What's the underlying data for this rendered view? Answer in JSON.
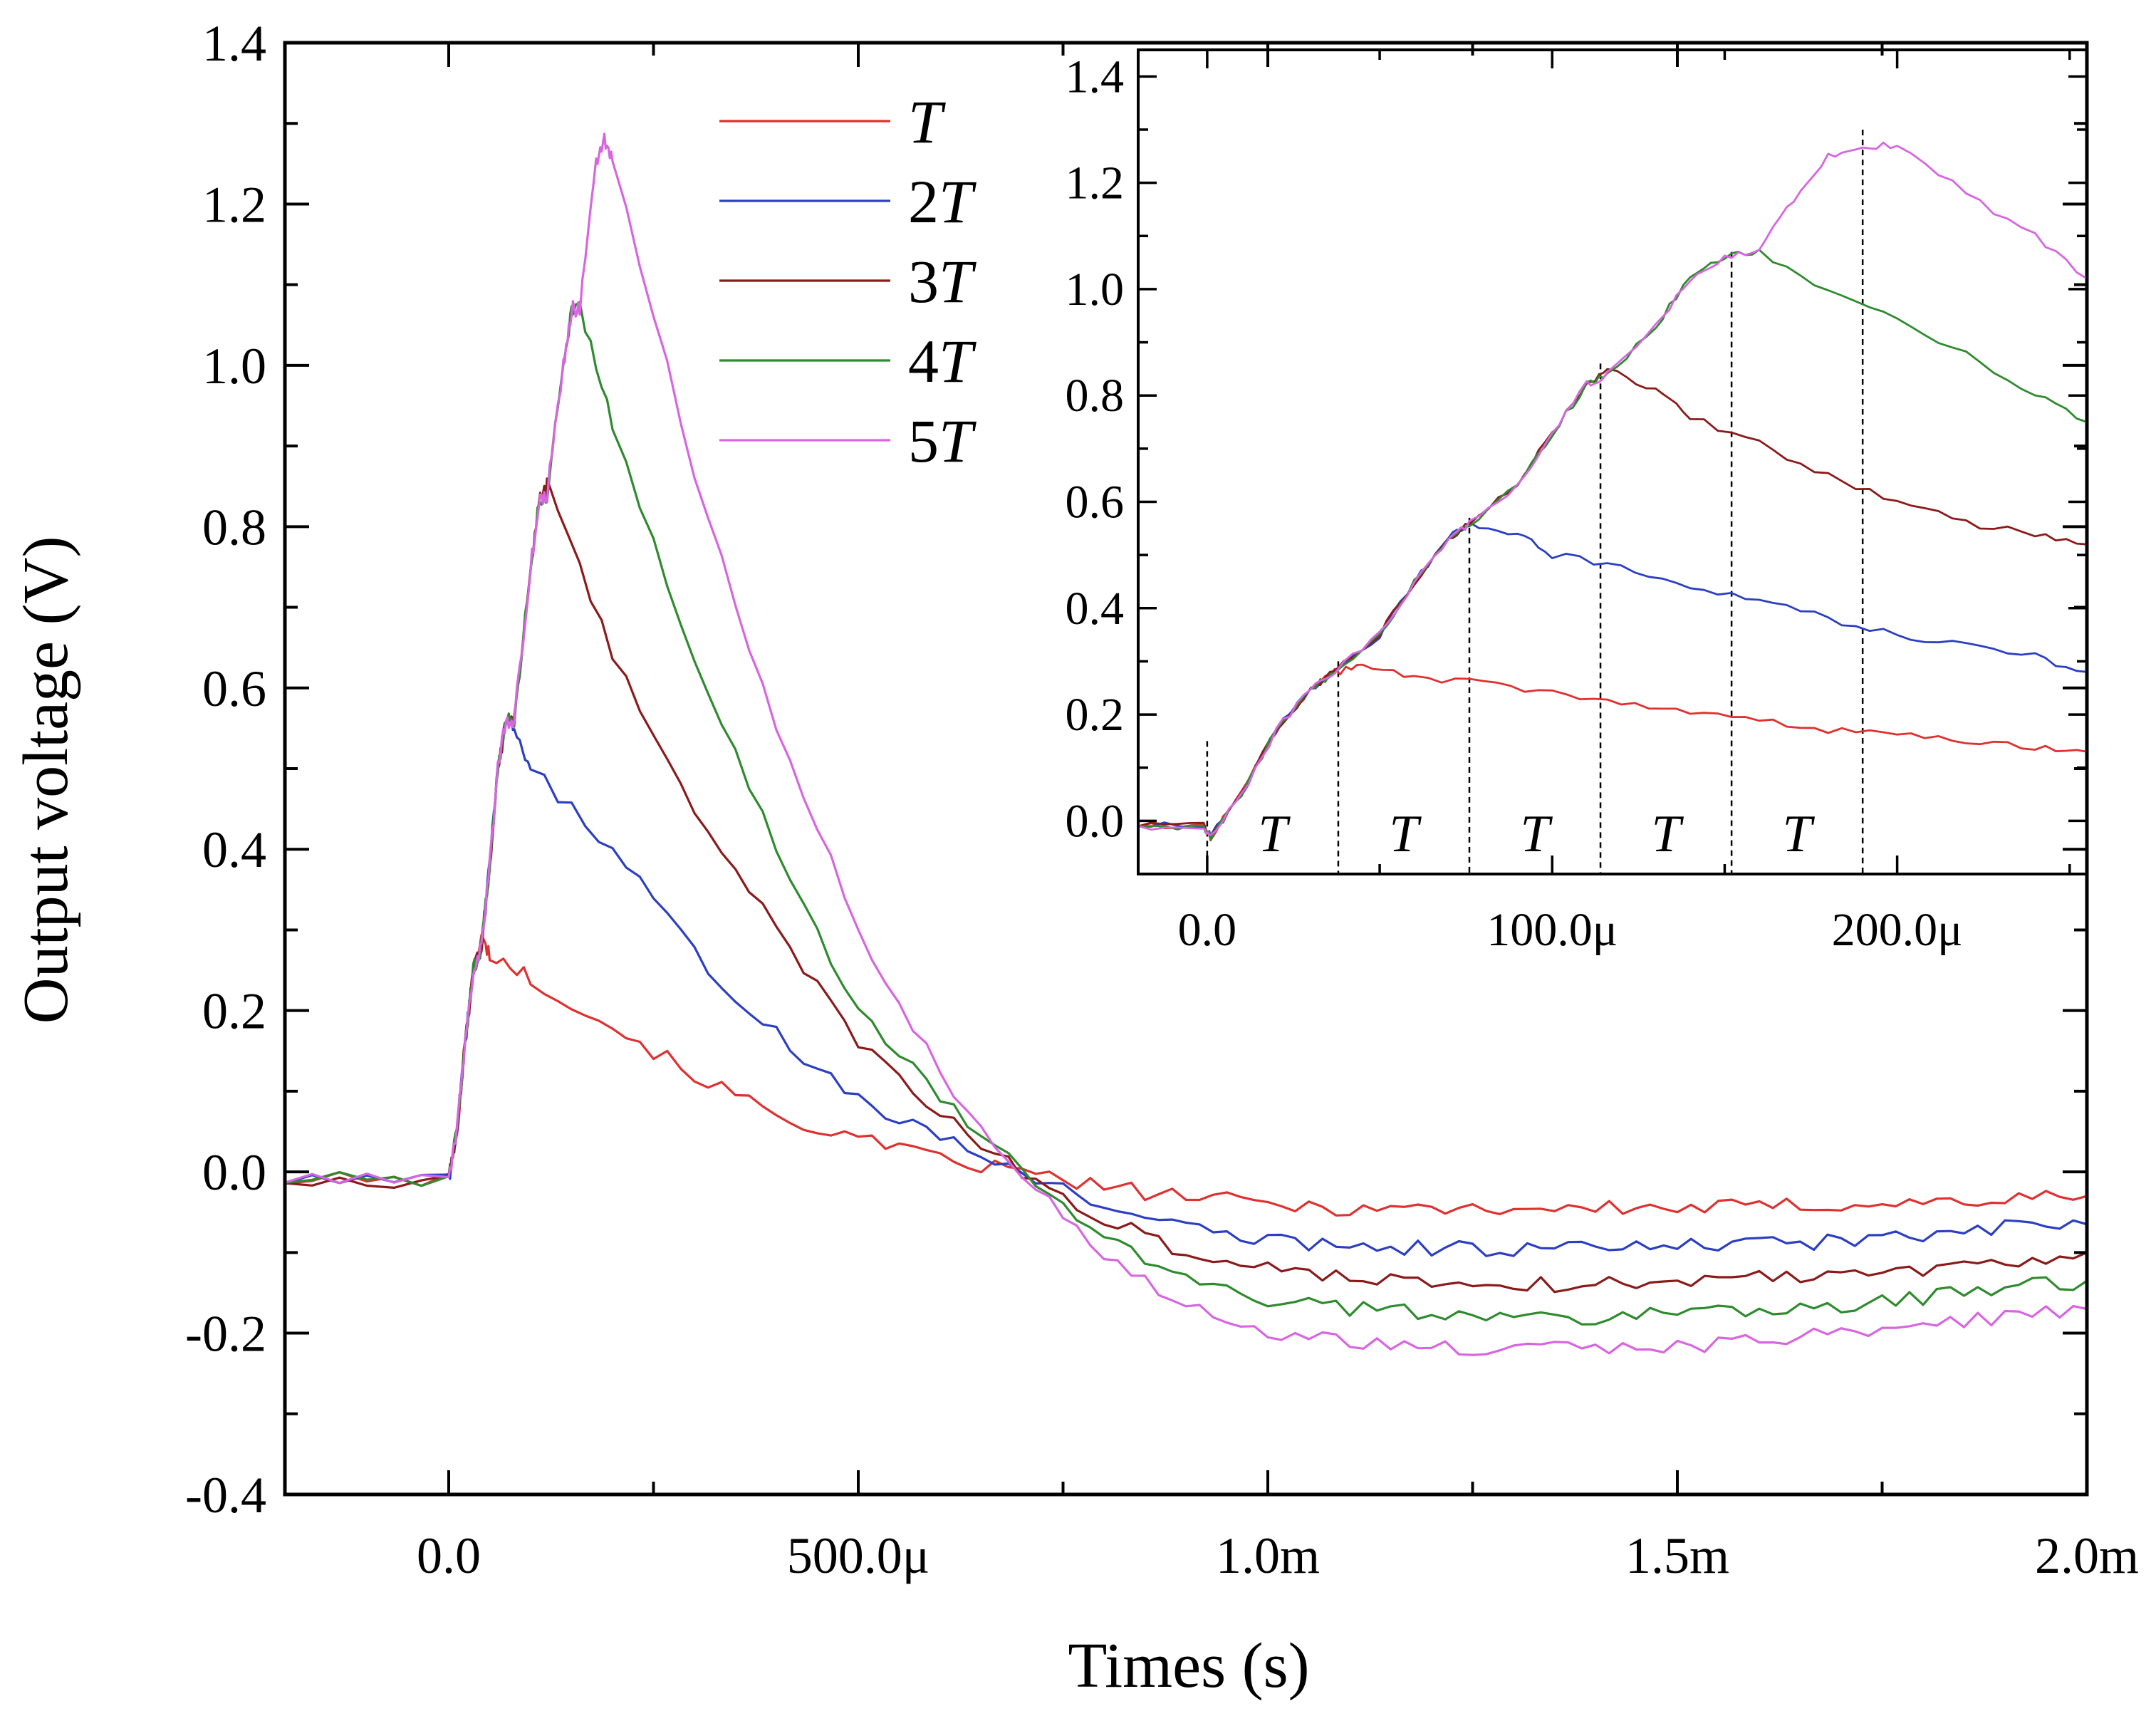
{
  "chart_data": [
    {
      "id": "main",
      "type": "line",
      "title": "",
      "xlabel": "Times (s)",
      "ylabel": "Output voltage (V)",
      "xlim": [
        -0.0002,
        0.002
      ],
      "ylim": [
        -0.4,
        1.4
      ],
      "x_ticks": [
        {
          "value": 0.0,
          "label": "0.0"
        },
        {
          "value": 0.0005,
          "label": "500.0μ"
        },
        {
          "value": 0.001,
          "label": "1.0m"
        },
        {
          "value": 0.0015,
          "label": "1.5m"
        },
        {
          "value": 0.002,
          "label": "2.0m"
        }
      ],
      "y_ticks": [
        {
          "value": -0.4,
          "label": "-0.4"
        },
        {
          "value": -0.2,
          "label": "-0.2"
        },
        {
          "value": 0.0,
          "label": "0.0"
        },
        {
          "value": 0.2,
          "label": "0.2"
        },
        {
          "value": 0.4,
          "label": "0.4"
        },
        {
          "value": 0.6,
          "label": "0.6"
        },
        {
          "value": 0.8,
          "label": "0.8"
        },
        {
          "value": 1.0,
          "label": "1.0"
        },
        {
          "value": 1.2,
          "label": "1.2"
        },
        {
          "value": 1.4,
          "label": "1.4"
        }
      ],
      "legend_position": "top-left-center",
      "series": [
        {
          "name": "T",
          "legend_prefix": "",
          "legend_italic": "T",
          "color": "#e03030",
          "x": [
            -0.0002,
            0.0,
            1e-05,
            2e-05,
            3e-05,
            4e-05,
            5e-05,
            0.0001,
            0.0002,
            0.0003,
            0.0004,
            0.0005,
            0.0006,
            0.0007,
            0.0008,
            0.0009,
            0.001,
            0.0011,
            0.0012,
            0.0013,
            0.0014,
            0.0015,
            0.0016,
            0.0017,
            0.0018,
            0.0019,
            0.002
          ],
          "y": [
            -0.01,
            -0.01,
            0.05,
            0.16,
            0.25,
            0.29,
            0.27,
            0.24,
            0.18,
            0.12,
            0.07,
            0.04,
            0.015,
            0.0,
            -0.02,
            -0.03,
            -0.04,
            -0.045,
            -0.045,
            -0.045,
            -0.045,
            -0.045,
            -0.043,
            -0.04,
            -0.038,
            -0.035,
            -0.03
          ]
        },
        {
          "name": "2T",
          "legend_prefix": "2",
          "legend_italic": "T",
          "color": "#2c3fc4",
          "x": [
            -0.0002,
            0.0,
            1e-05,
            2e-05,
            3e-05,
            4e-05,
            5e-05,
            6e-05,
            7e-05,
            8e-05,
            0.0001,
            0.0002,
            0.0003,
            0.0004,
            0.0005,
            0.0006,
            0.0007,
            0.0008,
            0.0009,
            0.001,
            0.0011,
            0.0012,
            0.0013,
            0.0014,
            0.0015,
            0.0016,
            0.0017,
            0.0018,
            0.0019,
            0.002
          ],
          "y": [
            -0.01,
            -0.01,
            0.05,
            0.16,
            0.25,
            0.28,
            0.38,
            0.5,
            0.56,
            0.55,
            0.5,
            0.4,
            0.27,
            0.17,
            0.09,
            0.04,
            0.0,
            -0.04,
            -0.07,
            -0.085,
            -0.09,
            -0.095,
            -0.095,
            -0.095,
            -0.092,
            -0.09,
            -0.085,
            -0.08,
            -0.07,
            -0.065
          ]
        },
        {
          "name": "3T",
          "legend_prefix": "3",
          "legend_italic": "T",
          "color": "#8b1a1a",
          "x": [
            -0.0002,
            0.0,
            1e-05,
            2e-05,
            3e-05,
            4e-05,
            5e-05,
            6e-05,
            7e-05,
            8e-05,
            0.0001,
            0.00011,
            0.00012,
            0.0002,
            0.0003,
            0.0004,
            0.0005,
            0.0006,
            0.0007,
            0.0008,
            0.0009,
            0.001,
            0.0011,
            0.0012,
            0.0013,
            0.0014,
            0.0015,
            0.0016,
            0.0017,
            0.0018,
            0.0019,
            0.002
          ],
          "y": [
            -0.01,
            -0.01,
            0.05,
            0.16,
            0.25,
            0.28,
            0.38,
            0.5,
            0.56,
            0.56,
            0.75,
            0.83,
            0.85,
            0.64,
            0.45,
            0.3,
            0.16,
            0.07,
            0.0,
            -0.06,
            -0.1,
            -0.12,
            -0.13,
            -0.135,
            -0.14,
            -0.14,
            -0.135,
            -0.13,
            -0.125,
            -0.12,
            -0.11,
            -0.1
          ]
        },
        {
          "name": "4T",
          "legend_prefix": "4",
          "legend_italic": "T",
          "color": "#2e8b2e",
          "x": [
            -0.0002,
            0.0,
            1e-05,
            2e-05,
            3e-05,
            4e-05,
            5e-05,
            6e-05,
            7e-05,
            8e-05,
            0.0001,
            0.00011,
            0.00012,
            0.00014,
            0.00015,
            0.00016,
            0.0002,
            0.0003,
            0.0004,
            0.0005,
            0.0006,
            0.0007,
            0.0008,
            0.0009,
            0.001,
            0.0011,
            0.0012,
            0.0013,
            0.0014,
            0.0015,
            0.0016,
            0.0017,
            0.0018,
            0.0019,
            0.002
          ],
          "y": [
            -0.01,
            -0.01,
            0.05,
            0.16,
            0.25,
            0.28,
            0.38,
            0.5,
            0.56,
            0.56,
            0.75,
            0.83,
            0.84,
            1.0,
            1.07,
            1.07,
            0.93,
            0.63,
            0.4,
            0.2,
            0.09,
            0.0,
            -0.08,
            -0.13,
            -0.16,
            -0.17,
            -0.175,
            -0.18,
            -0.18,
            -0.175,
            -0.17,
            -0.165,
            -0.155,
            -0.145,
            -0.135
          ]
        },
        {
          "name": "5T",
          "legend_prefix": "5",
          "legend_italic": "T",
          "color": "#d766e0",
          "x": [
            -0.0002,
            0.0,
            1e-05,
            2e-05,
            3e-05,
            4e-05,
            5e-05,
            6e-05,
            7e-05,
            8e-05,
            0.0001,
            0.00011,
            0.00012,
            0.00014,
            0.00015,
            0.00016,
            0.00018,
            0.00019,
            0.0002,
            0.0003,
            0.0004,
            0.0005,
            0.0006,
            0.0007,
            0.0008,
            0.0009,
            0.001,
            0.0011,
            0.0012,
            0.0013,
            0.0014,
            0.0015,
            0.0016,
            0.0017,
            0.0018,
            0.0019,
            0.002
          ],
          "y": [
            -0.01,
            -0.01,
            0.05,
            0.16,
            0.25,
            0.28,
            0.38,
            0.5,
            0.56,
            0.56,
            0.75,
            0.83,
            0.84,
            1.0,
            1.07,
            1.07,
            1.25,
            1.28,
            1.25,
            0.87,
            0.55,
            0.3,
            0.12,
            0.0,
            -0.1,
            -0.17,
            -0.2,
            -0.21,
            -0.22,
            -0.22,
            -0.22,
            -0.215,
            -0.21,
            -0.2,
            -0.19,
            -0.18,
            -0.17
          ]
        }
      ]
    },
    {
      "id": "inset",
      "type": "line",
      "xlim": [
        -2e-05,
        0.000255
      ],
      "ylim": [
        -0.1,
        1.45
      ],
      "x_ticks": [
        {
          "value": 0.0,
          "label": "0.0"
        },
        {
          "value": 0.0001,
          "label": "100.0μ"
        },
        {
          "value": 0.0002,
          "label": "200.0μ"
        }
      ],
      "y_ticks": [
        {
          "value": 0.0,
          "label": "0.0"
        },
        {
          "value": 0.2,
          "label": "0.2"
        },
        {
          "value": 0.4,
          "label": "0.4"
        },
        {
          "value": 0.6,
          "label": "0.6"
        },
        {
          "value": 0.8,
          "label": "0.8"
        },
        {
          "value": 1.0,
          "label": "1.0"
        },
        {
          "value": 1.2,
          "label": "1.2"
        },
        {
          "value": 1.4,
          "label": "1.4"
        }
      ],
      "period_markers_x": [
        0.0,
        3.8e-05,
        7.6e-05,
        0.000114,
        0.000152,
        0.00019
      ],
      "annotations": [
        "T",
        "T",
        "T",
        "T",
        "T"
      ],
      "series": [
        {
          "name": "T",
          "color": "#e03030",
          "x": [
            -2e-05,
            -1e-06,
            1e-06,
            1e-05,
            2e-05,
            3e-05,
            3.7e-05,
            4.5e-05,
            6e-05,
            8e-05,
            0.0001,
            0.00012,
            0.00014,
            0.00016,
            0.00018,
            0.0002,
            0.00022,
            0.00024,
            0.000255
          ],
          "y": [
            -0.01,
            -0.01,
            -0.03,
            0.05,
            0.17,
            0.25,
            0.28,
            0.29,
            0.27,
            0.26,
            0.24,
            0.22,
            0.2,
            0.19,
            0.17,
            0.16,
            0.15,
            0.14,
            0.13
          ]
        },
        {
          "name": "2T",
          "color": "#2c3fc4",
          "x": [
            -2e-05,
            -1e-06,
            1e-06,
            1e-05,
            2e-05,
            3e-05,
            3.7e-05,
            5e-05,
            6e-05,
            7e-05,
            7.6e-05,
            9e-05,
            0.0001,
            0.00012,
            0.00014,
            0.00016,
            0.00018,
            0.0002,
            0.00022,
            0.00024,
            0.000255
          ],
          "y": [
            -0.01,
            -0.01,
            -0.03,
            0.05,
            0.17,
            0.25,
            0.28,
            0.35,
            0.45,
            0.53,
            0.56,
            0.54,
            0.5,
            0.48,
            0.44,
            0.42,
            0.38,
            0.35,
            0.33,
            0.31,
            0.28
          ]
        },
        {
          "name": "3T",
          "color": "#8b1a1a",
          "x": [
            -2e-05,
            -1e-06,
            1e-06,
            1e-05,
            2e-05,
            3e-05,
            3.7e-05,
            5e-05,
            6e-05,
            7e-05,
            7.6e-05,
            9e-05,
            0.0001,
            0.00011,
            0.000116,
            0.00013,
            0.00014,
            0.00016,
            0.00018,
            0.0002,
            0.00022,
            0.00024,
            0.000255
          ],
          "y": [
            -0.01,
            -0.01,
            -0.03,
            0.05,
            0.17,
            0.25,
            0.28,
            0.35,
            0.45,
            0.53,
            0.56,
            0.63,
            0.73,
            0.82,
            0.85,
            0.81,
            0.76,
            0.71,
            0.65,
            0.6,
            0.56,
            0.54,
            0.52
          ]
        },
        {
          "name": "4T",
          "color": "#2e8b2e",
          "x": [
            -2e-05,
            -1e-06,
            1e-06,
            1e-05,
            2e-05,
            3e-05,
            3.7e-05,
            5e-05,
            6e-05,
            7e-05,
            7.6e-05,
            9e-05,
            0.0001,
            0.00011,
            0.000116,
            0.00013,
            0.00014,
            0.00015,
            0.00016,
            0.00018,
            0.0002,
            0.00022,
            0.00024,
            0.000255
          ],
          "y": [
            -0.01,
            -0.01,
            -0.03,
            0.05,
            0.17,
            0.25,
            0.28,
            0.35,
            0.45,
            0.53,
            0.56,
            0.63,
            0.73,
            0.82,
            0.84,
            0.93,
            1.02,
            1.06,
            1.07,
            1.0,
            0.94,
            0.88,
            0.8,
            0.75
          ]
        },
        {
          "name": "5T",
          "color": "#d766e0",
          "x": [
            -2e-05,
            -1e-06,
            1e-06,
            1e-05,
            2e-05,
            3e-05,
            3.7e-05,
            5e-05,
            6e-05,
            7e-05,
            7.6e-05,
            9e-05,
            0.0001,
            0.00011,
            0.000116,
            0.00013,
            0.00014,
            0.00015,
            0.00016,
            0.00017,
            0.00018,
            0.00019,
            0.0002,
            0.00022,
            0.00024,
            0.000255
          ],
          "y": [
            -0.01,
            -0.01,
            -0.03,
            0.05,
            0.17,
            0.25,
            0.28,
            0.35,
            0.45,
            0.53,
            0.56,
            0.63,
            0.73,
            0.82,
            0.84,
            0.93,
            1.02,
            1.06,
            1.07,
            1.17,
            1.25,
            1.27,
            1.27,
            1.18,
            1.1,
            1.02
          ]
        }
      ]
    }
  ]
}
